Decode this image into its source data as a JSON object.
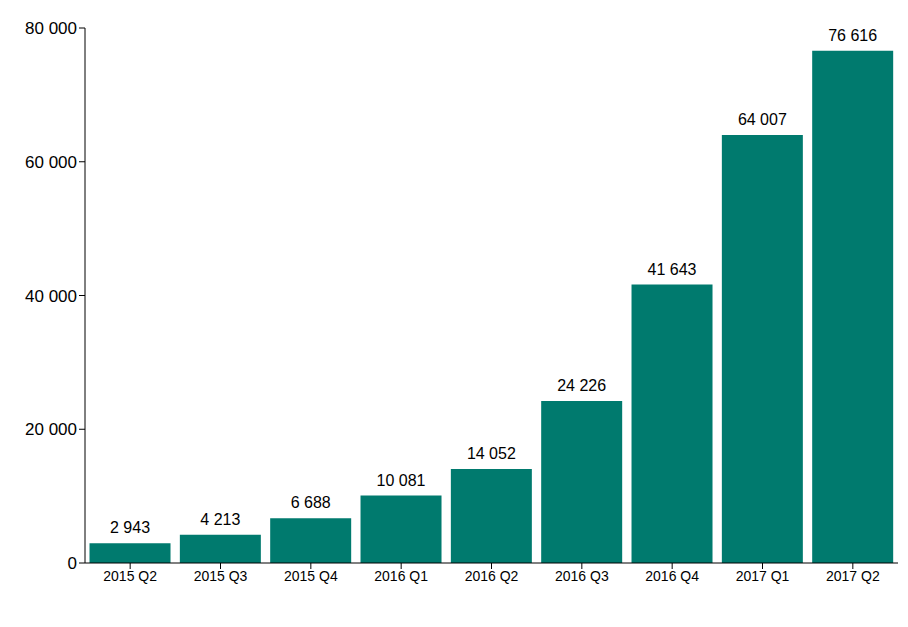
{
  "chart_data": {
    "type": "bar",
    "categories": [
      "2015 Q2",
      "2015 Q3",
      "2015 Q4",
      "2016 Q1",
      "2016 Q2",
      "2016 Q3",
      "2016 Q4",
      "2017 Q1",
      "2017 Q2"
    ],
    "values": [
      2943,
      4213,
      6688,
      10081,
      14052,
      24226,
      41643,
      64007,
      76616
    ],
    "value_labels": [
      "2 943",
      "4 213",
      "6 688",
      "10 081",
      "14 052",
      "24 226",
      "41 643",
      "64 007",
      "76 616"
    ],
    "color": "#007A6E",
    "ylim": [
      0,
      80000
    ],
    "yticks": [
      {
        "value": 0,
        "label": "0"
      },
      {
        "value": 20000,
        "label": "20 000"
      },
      {
        "value": 40000,
        "label": "40 000"
      },
      {
        "value": 60000,
        "label": "60 000"
      },
      {
        "value": 80000,
        "label": "80 000"
      }
    ],
    "grid": false,
    "data_labels": true
  }
}
